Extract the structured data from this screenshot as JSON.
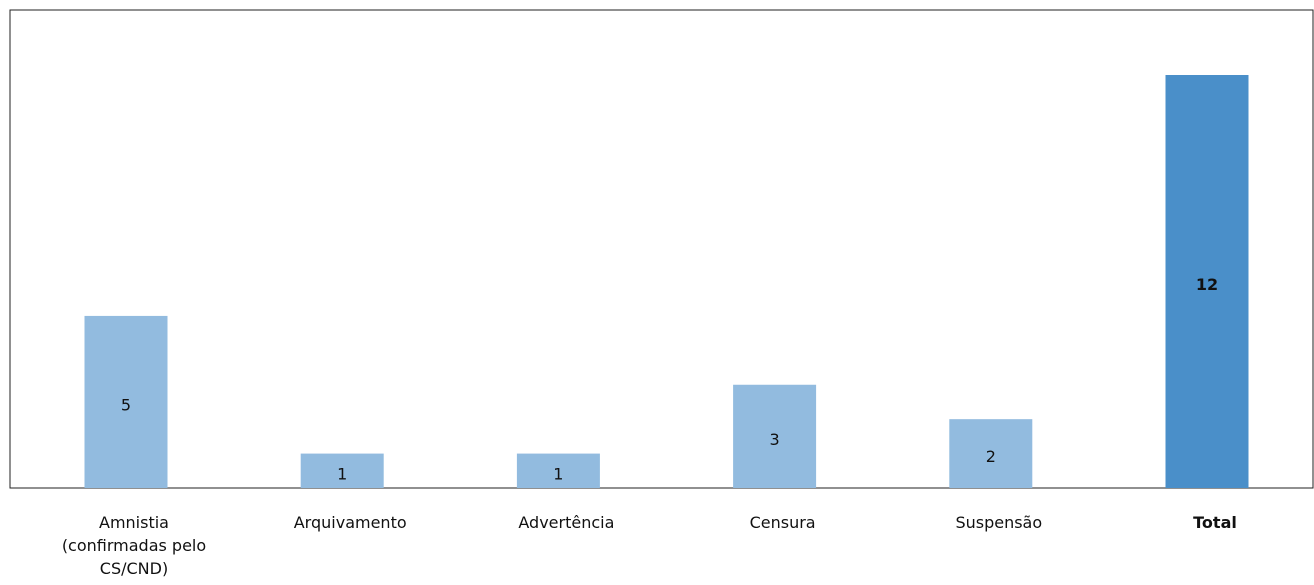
{
  "chart_data": {
    "type": "bar",
    "categories": [
      "Amnistia (confirmadas pelo CS/CND)",
      "Arquivamento",
      "Advertência",
      "Censura",
      "Suspensão",
      "Total"
    ],
    "values": [
      5,
      1,
      1,
      3,
      2,
      12
    ],
    "colors": [
      "#92bbdf",
      "#92bbdf",
      "#92bbdf",
      "#92bbdf",
      "#92bbdf",
      "#4a8fc9"
    ],
    "emphasis": [
      false,
      false,
      false,
      false,
      false,
      true
    ]
  }
}
